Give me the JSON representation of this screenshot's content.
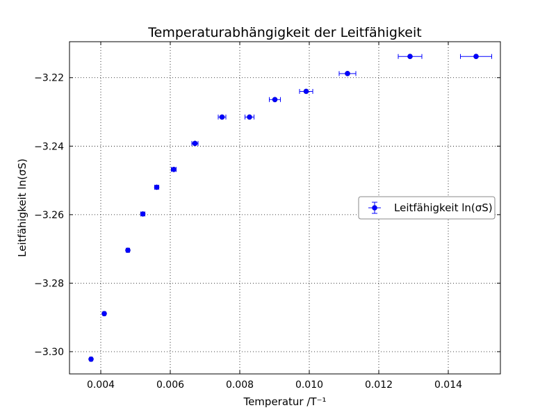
{
  "chart_data": {
    "type": "scatter",
    "title": "Temperaturabhängigkeit der Leitfähigkeit",
    "xlabel": "Temperatur /T⁻¹",
    "ylabel": "Leitfähigkeit ln(σS)",
    "xlim": [
      0.0031,
      0.0155
    ],
    "ylim": [
      -3.3065,
      -3.2095
    ],
    "xticks": [
      0.004,
      0.006,
      0.008,
      0.01,
      0.012,
      0.014
    ],
    "xtick_labels": [
      "0.004",
      "0.006",
      "0.008",
      "0.010",
      "0.012",
      "0.014"
    ],
    "yticks": [
      -3.3,
      -3.28,
      -3.26,
      -3.24,
      -3.22
    ],
    "ytick_labels": [
      "−3.30",
      "−3.28",
      "−3.26",
      "−3.24",
      "−3.22"
    ],
    "grid": true,
    "legend_position": "center-right",
    "series": [
      {
        "name": "Leitfähigkeit ln(σS)",
        "color": "#0000ff",
        "marker": "circle",
        "x": [
          0.00372,
          0.0041,
          0.00478,
          0.00521,
          0.00561,
          0.0061,
          0.00671,
          0.00749,
          0.00828,
          0.00901,
          0.00991,
          0.0111,
          0.0129,
          0.0148
        ],
        "y": [
          -3.3022,
          -3.2889,
          -3.2704,
          -3.2598,
          -3.252,
          -3.2468,
          -3.2392,
          -3.2315,
          -3.2315,
          -3.2264,
          -3.224,
          -3.2188,
          -3.2138,
          -3.2138
        ],
        "xerr": [
          4e-05,
          4e-05,
          5e-05,
          6e-05,
          6e-05,
          7e-05,
          9e-05,
          0.00011,
          0.00013,
          0.00016,
          0.00019,
          0.00024,
          0.00034,
          0.00045
        ]
      }
    ]
  }
}
